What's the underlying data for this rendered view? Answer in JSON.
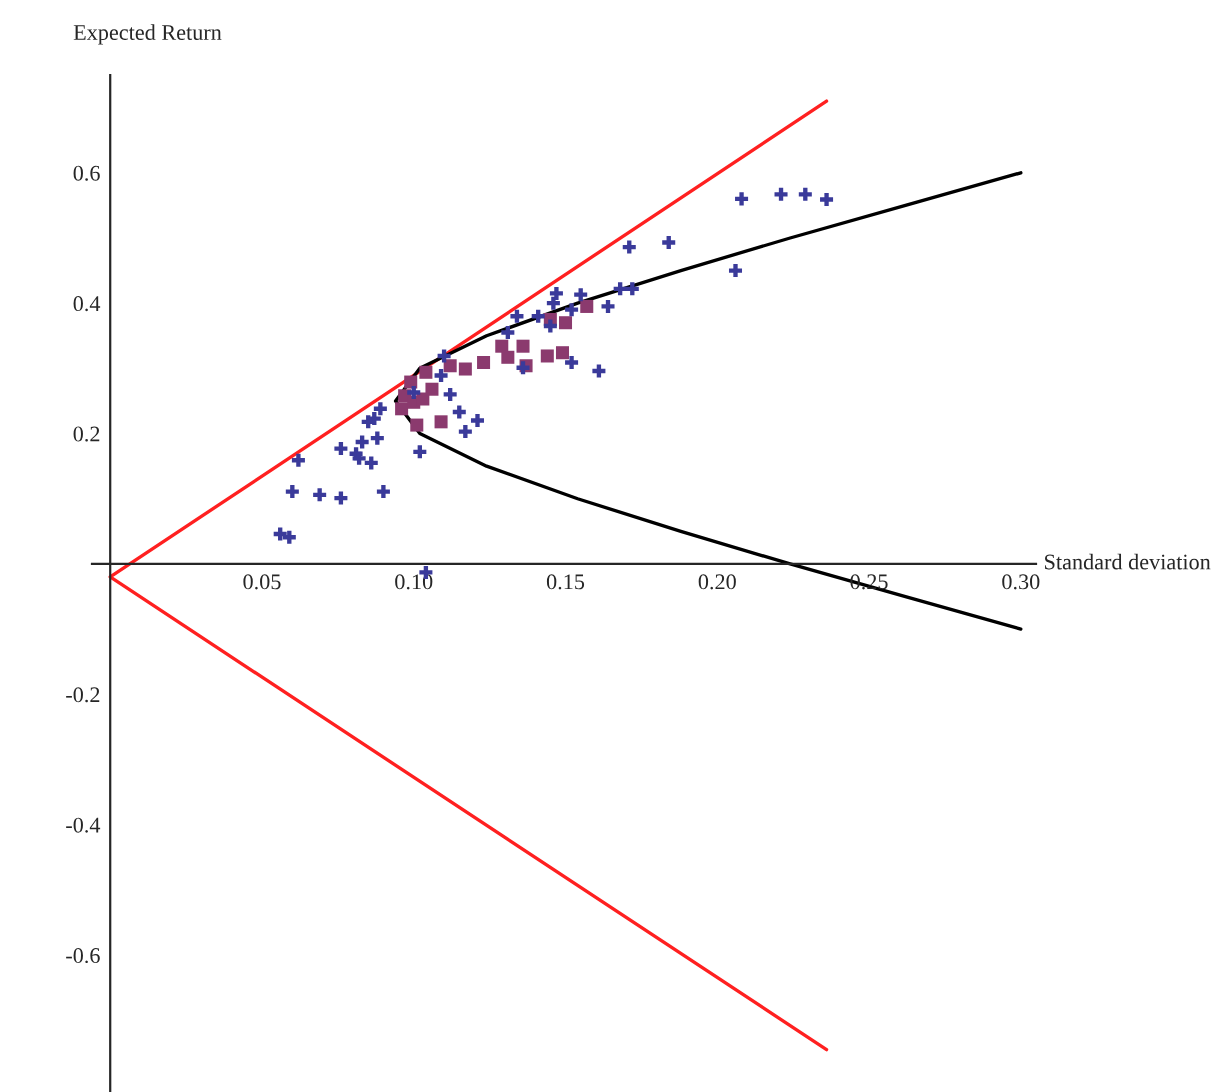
{
  "chart_data": {
    "type": "scatter",
    "xlabel": "Standard deviation",
    "ylabel": "Expected Return",
    "xlim": [
      -0.006,
      0.305
    ],
    "ylim": [
      -0.81,
      0.75
    ],
    "xticks": [
      0.05,
      {
        "value": 0.1,
        "label": "0.10"
      },
      0.15,
      {
        "value": 0.2,
        "label": "0.20"
      },
      0.25,
      {
        "value": 0.3,
        "label": "0.30"
      }
    ],
    "yticks": [
      -0.6,
      -0.4,
      -0.2,
      0.2,
      0.4,
      0.6
    ],
    "grid": false,
    "legend": false,
    "series": [
      {
        "type": "line",
        "color": "#ff2020",
        "marker": "none",
        "line_style": "solid",
        "x": [
          0.236,
          0,
          0.236
        ],
        "values": [
          0.71,
          -0.02,
          -0.745
        ]
      },
      {
        "type": "line",
        "color": "#000000",
        "marker": "none",
        "line_style": "solid",
        "x": [
          0.3,
          0.262,
          0.224,
          0.188,
          0.154,
          0.124,
          0.102,
          0.094,
          0.102,
          0.124,
          0.154,
          0.188,
          0.224,
          0.262,
          0.3
        ],
        "values": [
          0.6,
          0.55,
          0.5,
          0.45,
          0.4,
          0.35,
          0.3,
          0.25,
          0.2,
          0.15,
          0.1,
          0.05,
          0.0,
          -0.05,
          -0.1
        ]
      },
      {
        "color": "#8b3a6e",
        "marker": "square",
        "x": [
          0.096,
          0.097,
          0.099,
          0.1,
          0.101,
          0.103,
          0.104,
          0.106,
          0.109,
          0.112,
          0.117,
          0.123,
          0.129,
          0.131,
          0.136,
          0.137,
          0.144,
          0.145,
          0.149,
          0.15,
          0.157
        ],
        "values": [
          0.238,
          0.258,
          0.279,
          0.248,
          0.213,
          0.253,
          0.294,
          0.268,
          0.218,
          0.304,
          0.299,
          0.309,
          0.334,
          0.317,
          0.334,
          0.304,
          0.319,
          0.375,
          0.324,
          0.37,
          0.395
        ]
      },
      {
        "color": "#3a3a9a",
        "marker": "cross",
        "x": [
          0.056,
          0.059,
          0.06,
          0.062,
          0.069,
          0.076,
          0.076,
          0.081,
          0.082,
          0.083,
          0.085,
          0.086,
          0.087,
          0.088,
          0.09,
          0.089,
          0.1,
          0.102,
          0.104,
          0.109,
          0.11,
          0.112,
          0.115,
          0.117,
          0.121,
          0.131,
          0.134,
          0.136,
          0.141,
          0.145,
          0.146,
          0.147,
          0.152,
          0.152,
          0.155,
          0.161,
          0.164,
          0.168,
          0.171,
          0.172,
          0.184,
          0.206,
          0.208,
          0.221,
          0.229,
          0.236
        ],
        "values": [
          0.046,
          0.041,
          0.111,
          0.159,
          0.106,
          0.101,
          0.177,
          0.169,
          0.162,
          0.187,
          0.218,
          0.155,
          0.223,
          0.193,
          0.111,
          0.238,
          0.263,
          0.172,
          -0.013,
          0.289,
          0.319,
          0.26,
          0.233,
          0.203,
          0.22,
          0.355,
          0.38,
          0.301,
          0.38,
          0.365,
          0.4,
          0.415,
          0.309,
          0.39,
          0.413,
          0.296,
          0.395,
          0.422,
          0.486,
          0.422,
          0.493,
          0.45,
          0.56,
          0.567,
          0.567,
          0.559
        ]
      }
    ]
  }
}
